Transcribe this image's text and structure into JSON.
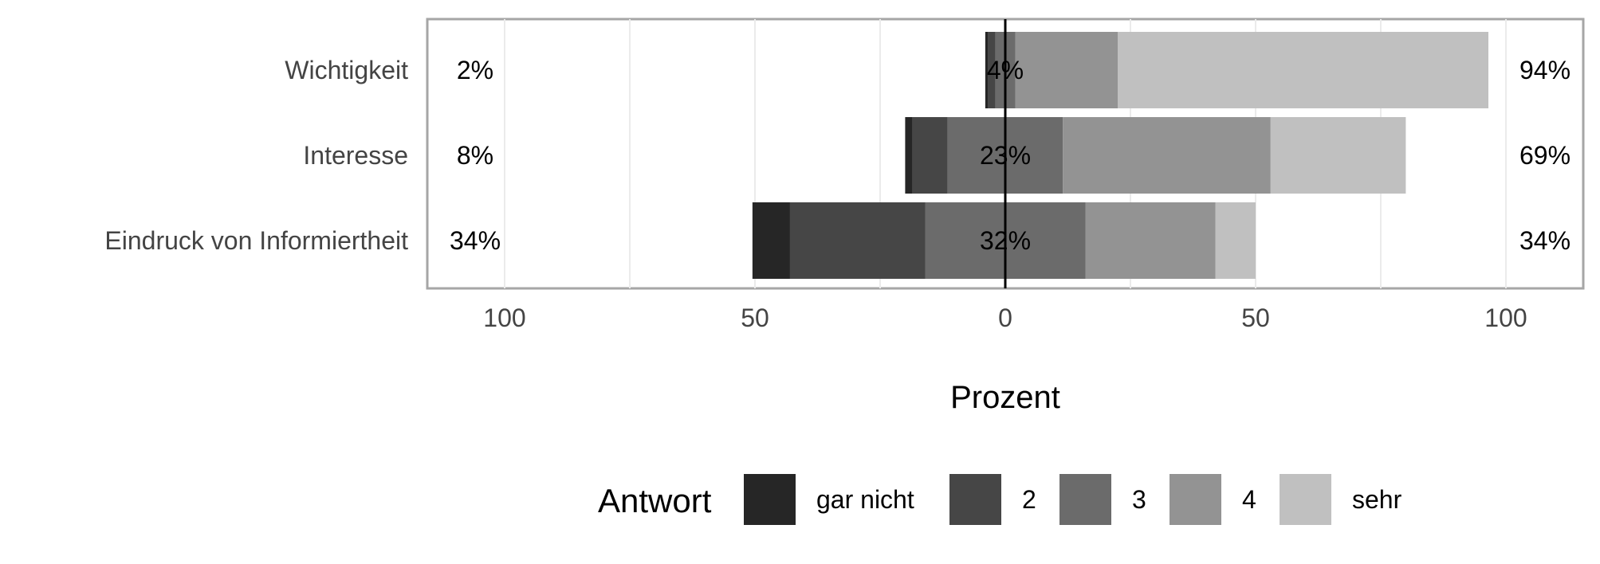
{
  "chart_data": {
    "type": "bar",
    "orientation": "horizontal",
    "stacked": "diverging",
    "categories": [
      "Wichtigkeit",
      "Interesse",
      "Eindruck von Informiertheit"
    ],
    "series": [
      {
        "name": "gar nicht",
        "values": [
          0.5,
          1.5,
          7.5
        ],
        "color": "#262626"
      },
      {
        "name": "2",
        "values": [
          1.5,
          7.0,
          27.0
        ],
        "color": "#464646"
      },
      {
        "name": "3",
        "values": [
          4.0,
          23.0,
          32.0
        ],
        "color": "#6b6b6b"
      },
      {
        "name": "4",
        "values": [
          20.5,
          41.5,
          26.0
        ],
        "color": "#939393"
      },
      {
        "name": "sehr",
        "values": [
          74.0,
          27.0,
          8.0
        ],
        "color": "#c0c0c0"
      }
    ],
    "left_labels": [
      "2%",
      "8%",
      "34%"
    ],
    "center_labels": [
      "4%",
      "23%",
      "32%"
    ],
    "right_labels": [
      "94%",
      "69%",
      "34%"
    ],
    "x_ticks": [
      {
        "value": -100,
        "label": "100"
      },
      {
        "value": -50,
        "label": "50"
      },
      {
        "value": 0,
        "label": "0"
      },
      {
        "value": 50,
        "label": "50"
      },
      {
        "value": 100,
        "label": "100"
      }
    ],
    "xlim": [
      -100,
      100
    ],
    "xlabel": "Prozent",
    "legend_title": "Antwort",
    "legend_position": "bottom",
    "grid": true
  }
}
